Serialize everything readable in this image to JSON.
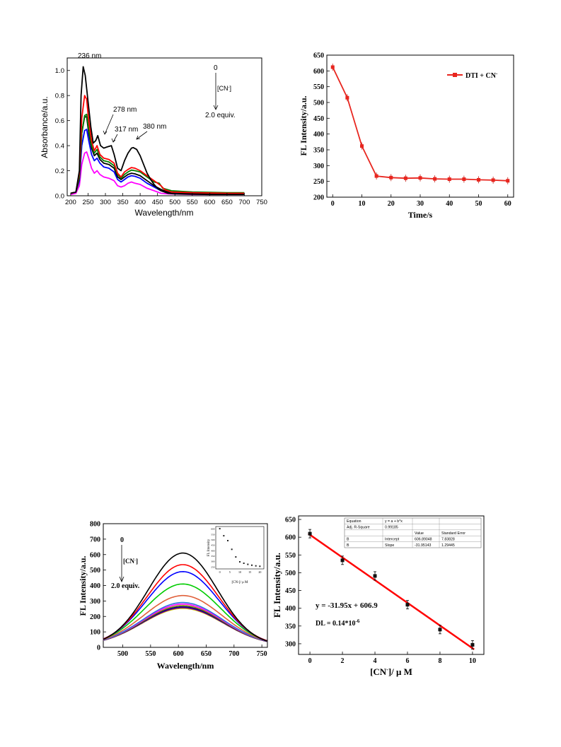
{
  "chart_data": [
    {
      "id": "absorbance",
      "type": "line",
      "xlabel": "Wavelength/nm",
      "ylabel": "Absorbance/a.u.",
      "xlim": [
        190,
        750
      ],
      "ylim": [
        0,
        1.1
      ],
      "xticks": [
        200,
        250,
        300,
        350,
        400,
        450,
        500,
        550,
        600,
        650,
        700,
        750
      ],
      "yticks": [
        0.0,
        0.2,
        0.4,
        0.6,
        0.8,
        1.0
      ],
      "ytick_labels": [
        "0.0",
        "0.2",
        "0.4",
        "0.6",
        "0.8",
        "1.0"
      ],
      "annotations": [
        "236 nm",
        "278 nm",
        "317 nm",
        "380 nm"
      ],
      "legend_note": {
        "top": "0",
        "middle": "[CN",
        "middle_sup": "-",
        "middle_end": "]",
        "bottom": "2.0 equiv."
      },
      "series": [
        {
          "color": "#000000",
          "points": [
            [
              200,
              0.02
            ],
            [
              215,
              0.03
            ],
            [
              225,
              0.2
            ],
            [
              230,
              0.8
            ],
            [
              236,
              1.03
            ],
            [
              242,
              0.96
            ],
            [
              250,
              0.75
            ],
            [
              258,
              0.55
            ],
            [
              265,
              0.42
            ],
            [
              272,
              0.44
            ],
            [
              278,
              0.48
            ],
            [
              286,
              0.4
            ],
            [
              295,
              0.38
            ],
            [
              305,
              0.39
            ],
            [
              317,
              0.4
            ],
            [
              325,
              0.33
            ],
            [
              335,
              0.22
            ],
            [
              345,
              0.2
            ],
            [
              355,
              0.28
            ],
            [
              365,
              0.34
            ],
            [
              375,
              0.38
            ],
            [
              380,
              0.385
            ],
            [
              390,
              0.37
            ],
            [
              400,
              0.32
            ],
            [
              410,
              0.25
            ],
            [
              420,
              0.18
            ],
            [
              430,
              0.13
            ],
            [
              440,
              0.09
            ],
            [
              450,
              0.06
            ],
            [
              460,
              0.04
            ],
            [
              480,
              0.02
            ],
            [
              500,
              0.015
            ],
            [
              600,
              0.01
            ],
            [
              700,
              0.01
            ]
          ]
        },
        {
          "color": "#ff0000",
          "points": [
            [
              200,
              0.02
            ],
            [
              215,
              0.03
            ],
            [
              225,
              0.18
            ],
            [
              232,
              0.62
            ],
            [
              240,
              0.8
            ],
            [
              246,
              0.77
            ],
            [
              252,
              0.6
            ],
            [
              260,
              0.44
            ],
            [
              268,
              0.36
            ],
            [
              276,
              0.4
            ],
            [
              284,
              0.33
            ],
            [
              295,
              0.3
            ],
            [
              310,
              0.29
            ],
            [
              325,
              0.26
            ],
            [
              335,
              0.18
            ],
            [
              345,
              0.15
            ],
            [
              355,
              0.19
            ],
            [
              365,
              0.21
            ],
            [
              375,
              0.225
            ],
            [
              385,
              0.22
            ],
            [
              400,
              0.2
            ],
            [
              420,
              0.16
            ],
            [
              440,
              0.12
            ],
            [
              460,
              0.08
            ],
            [
              470,
              0.05
            ],
            [
              490,
              0.03
            ],
            [
              550,
              0.025
            ],
            [
              650,
              0.02
            ],
            [
              700,
              0.02
            ]
          ]
        },
        {
          "color": "#008000",
          "points": [
            [
              200,
              0.02
            ],
            [
              215,
              0.03
            ],
            [
              225,
              0.15
            ],
            [
              232,
              0.5
            ],
            [
              240,
              0.64
            ],
            [
              246,
              0.65
            ],
            [
              252,
              0.53
            ],
            [
              260,
              0.4
            ],
            [
              268,
              0.34
            ],
            [
              276,
              0.37
            ],
            [
              284,
              0.31
            ],
            [
              295,
              0.28
            ],
            [
              310,
              0.27
            ],
            [
              325,
              0.24
            ],
            [
              335,
              0.17
            ],
            [
              345,
              0.14
            ],
            [
              355,
              0.17
            ],
            [
              365,
              0.19
            ],
            [
              375,
              0.205
            ],
            [
              385,
              0.2
            ],
            [
              400,
              0.19
            ],
            [
              420,
              0.15
            ],
            [
              440,
              0.11
            ],
            [
              455,
              0.1
            ],
            [
              465,
              0.06
            ],
            [
              490,
              0.04
            ],
            [
              550,
              0.03
            ],
            [
              650,
              0.025
            ],
            [
              700,
              0.025
            ]
          ]
        },
        {
          "color": "#000000",
          "points": [
            [
              200,
              0.02
            ],
            [
              215,
              0.03
            ],
            [
              225,
              0.14
            ],
            [
              232,
              0.5
            ],
            [
              240,
              0.63
            ],
            [
              246,
              0.63
            ],
            [
              252,
              0.5
            ],
            [
              260,
              0.38
            ],
            [
              268,
              0.32
            ],
            [
              276,
              0.34
            ],
            [
              284,
              0.29
            ],
            [
              295,
              0.26
            ],
            [
              310,
              0.25
            ],
            [
              325,
              0.22
            ],
            [
              335,
              0.15
            ],
            [
              345,
              0.13
            ],
            [
              355,
              0.15
            ],
            [
              365,
              0.17
            ],
            [
              375,
              0.18
            ],
            [
              385,
              0.175
            ],
            [
              400,
              0.16
            ],
            [
              420,
              0.12
            ],
            [
              440,
              0.08
            ],
            [
              460,
              0.05
            ],
            [
              480,
              0.03
            ],
            [
              550,
              0.02
            ],
            [
              650,
              0.02
            ],
            [
              700,
              0.02
            ]
          ]
        },
        {
          "color": "#0000ff",
          "points": [
            [
              200,
              0.02
            ],
            [
              215,
              0.03
            ],
            [
              225,
              0.12
            ],
            [
              232,
              0.4
            ],
            [
              240,
              0.52
            ],
            [
              246,
              0.53
            ],
            [
              252,
              0.44
            ],
            [
              260,
              0.33
            ],
            [
              268,
              0.28
            ],
            [
              276,
              0.3
            ],
            [
              284,
              0.26
            ],
            [
              295,
              0.23
            ],
            [
              310,
              0.22
            ],
            [
              325,
              0.19
            ],
            [
              335,
              0.13
            ],
            [
              345,
              0.11
            ],
            [
              355,
              0.13
            ],
            [
              365,
              0.15
            ],
            [
              375,
              0.16
            ],
            [
              385,
              0.155
            ],
            [
              400,
              0.14
            ],
            [
              420,
              0.1
            ],
            [
              440,
              0.07
            ],
            [
              460,
              0.04
            ],
            [
              480,
              0.025
            ],
            [
              550,
              0.02
            ],
            [
              650,
              0.015
            ],
            [
              700,
              0.015
            ]
          ]
        },
        {
          "color": "#ff00ff",
          "points": [
            [
              200,
              0.01
            ],
            [
              215,
              0.02
            ],
            [
              225,
              0.08
            ],
            [
              232,
              0.25
            ],
            [
              240,
              0.34
            ],
            [
              246,
              0.35
            ],
            [
              252,
              0.3
            ],
            [
              260,
              0.22
            ],
            [
              268,
              0.18
            ],
            [
              276,
              0.2
            ],
            [
              284,
              0.17
            ],
            [
              295,
              0.15
            ],
            [
              310,
              0.14
            ],
            [
              325,
              0.12
            ],
            [
              335,
              0.08
            ],
            [
              345,
              0.07
            ],
            [
              355,
              0.08
            ],
            [
              365,
              0.1
            ],
            [
              375,
              0.11
            ],
            [
              385,
              0.1
            ],
            [
              400,
              0.09
            ],
            [
              420,
              0.06
            ],
            [
              440,
              0.04
            ],
            [
              460,
              0.02
            ],
            [
              480,
              0.015
            ],
            [
              550,
              0.01
            ],
            [
              650,
              0.01
            ],
            [
              700,
              0.01
            ]
          ]
        }
      ]
    },
    {
      "id": "time",
      "type": "line",
      "xlabel": "Time/s",
      "ylabel": "FL Intensity/a.u.",
      "xlim": [
        -2,
        62
      ],
      "ylim": [
        200,
        650
      ],
      "xticks": [
        0,
        10,
        20,
        30,
        40,
        50,
        60
      ],
      "yticks": [
        200,
        250,
        300,
        350,
        400,
        450,
        500,
        550,
        600,
        650
      ],
      "legend": {
        "label": "DTI + CN",
        "sup": "-",
        "color": "#e8251e"
      },
      "series": [
        {
          "color": "#e8251e",
          "x": [
            0,
            5,
            10,
            15,
            20,
            25,
            30,
            35,
            40,
            45,
            50,
            55,
            60
          ],
          "y": [
            612,
            515,
            362,
            267,
            262,
            260,
            261,
            258,
            257,
            257,
            255,
            254,
            252
          ]
        }
      ]
    },
    {
      "id": "fluorescence",
      "type": "line",
      "xlabel": "Wavelength/nm",
      "ylabel": "FL Intensity/a.u.",
      "xlim": [
        465,
        760
      ],
      "ylim": [
        0,
        800
      ],
      "xticks": [
        500,
        550,
        600,
        650,
        700,
        750
      ],
      "yticks": [
        0,
        100,
        200,
        300,
        400,
        500,
        600,
        700,
        800
      ],
      "legend_note": {
        "top": "0",
        "middle": "[CN",
        "middle_sup": "-",
        "middle_end": "]",
        "bottom": "2.0 equiv."
      },
      "series": [
        {
          "color": "#000000",
          "peak": 610
        },
        {
          "color": "#ff0000",
          "peak": 535
        },
        {
          "color": "#0000ff",
          "peak": 490
        },
        {
          "color": "#00cc00",
          "peak": 410
        },
        {
          "color": "#e0603a",
          "peak": 335
        },
        {
          "color": "#3070e0",
          "peak": 290
        },
        {
          "color": "#ff00ff",
          "peak": 280
        },
        {
          "color": "#808000",
          "peak": 270
        },
        {
          "color": "#000080",
          "peak": 262
        },
        {
          "color": "#800080",
          "peak": 256
        },
        {
          "color": "#cccc00",
          "peak": 252
        }
      ],
      "inset": {
        "ylabel": "FL Intensity",
        "xlabel": "[CN-]/ μ M",
        "xticks": [
          0,
          5,
          10,
          15,
          20
        ],
        "yticks": [
          250,
          300,
          350,
          400,
          450,
          500,
          550,
          600
        ],
        "x": [
          0,
          2,
          4,
          6,
          8,
          10,
          12,
          14,
          16,
          18,
          20
        ],
        "y": [
          600,
          535,
          490,
          410,
          340,
          295,
          282,
          272,
          264,
          258,
          254
        ]
      }
    },
    {
      "id": "calibration",
      "type": "scatter",
      "xlabel": "[CN",
      "xlabel_sup": "-",
      "xlabel_end": "]/ μ M",
      "ylabel": "FL Intensity/a.u.",
      "xlim": [
        -0.7,
        10.7
      ],
      "ylim": [
        270,
        660
      ],
      "xticks": [
        0,
        2,
        4,
        6,
        8,
        10
      ],
      "yticks": [
        300,
        350,
        400,
        450,
        500,
        550,
        600,
        650
      ],
      "x": [
        0,
        2,
        4,
        6,
        8,
        10
      ],
      "y": [
        610,
        535,
        491,
        410,
        340,
        297
      ],
      "fit": {
        "slope": -31.95,
        "intercept": 606.9,
        "color": "#ff0000"
      },
      "equation": "y = -31.95x + 606.9",
      "dl_prefix": "DL = 0.14*10",
      "dl_sup": "-6",
      "fit_table": [
        [
          "Equation",
          "y = a + b*x",
          "",
          ""
        ],
        [
          "Adj. R-Square",
          "0.99185",
          "",
          ""
        ],
        [
          "",
          "",
          "Value",
          "Standard Error"
        ],
        [
          "B",
          "Intercept",
          "606.89048",
          "7.83828"
        ],
        [
          "B",
          "Slope",
          "-31.95143",
          "1.29445"
        ]
      ]
    }
  ]
}
